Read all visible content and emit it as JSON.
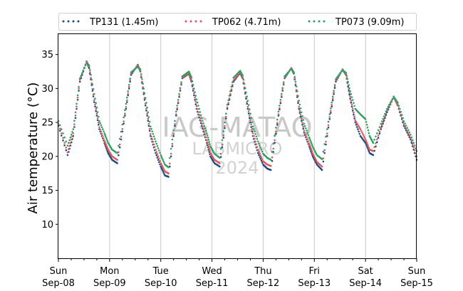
{
  "chart_data": {
    "type": "scatter",
    "ylabel": "Air temperature (°C)",
    "xlabel": "",
    "ylim": [
      5,
      38
    ],
    "xlim": [
      0,
      7
    ],
    "yticks": [
      10,
      15,
      20,
      25,
      30,
      35
    ],
    "x_unit": "days since Sep-08 00:00",
    "x_ticks": [
      {
        "day": "Sun",
        "date": "Sep-08"
      },
      {
        "day": "Mon",
        "date": "Sep-09"
      },
      {
        "day": "Tue",
        "date": "Sep-10"
      },
      {
        "day": "Wed",
        "date": "Sep-11"
      },
      {
        "day": "Thu",
        "date": "Sep-12"
      },
      {
        "day": "Fri",
        "date": "Sep-13"
      },
      {
        "day": "Sat",
        "date": "Sep-14"
      },
      {
        "day": "Sun",
        "date": "Sep-15"
      }
    ],
    "vertical_grid": true,
    "legend_position": "top",
    "watermark": [
      "IAG-MATAO",
      "LABMICRO",
      "2024"
    ],
    "series": [
      {
        "name": "TP131 (1.45m)",
        "color": "#1a4a8a",
        "x": [
          0,
          0.18,
          0.29,
          0.42,
          0.55,
          0.6,
          0.7,
          0.8,
          0.9,
          0.97,
          1.05,
          1.15,
          1.3,
          1.42,
          1.55,
          1.6,
          1.7,
          1.8,
          1.9,
          2.0,
          2.08,
          2.15,
          2.3,
          2.42,
          2.55,
          2.6,
          2.7,
          2.8,
          2.9,
          2.97,
          3.05,
          3.15,
          3.3,
          3.42,
          3.55,
          3.6,
          3.7,
          3.8,
          3.9,
          4.0,
          4.08,
          4.15,
          4.3,
          4.42,
          4.55,
          4.6,
          4.7,
          4.8,
          4.9,
          4.97,
          5.05,
          5.15,
          5.3,
          5.42,
          5.55,
          5.62,
          5.7,
          5.8,
          5.9,
          6.0,
          6.08,
          6.15,
          6.3,
          6.42,
          6.55,
          6.63,
          6.75,
          6.88,
          7.0
        ],
        "y": [
          24.5,
          20.2,
          23.0,
          31.0,
          34.0,
          33.0,
          28.0,
          24.0,
          22.0,
          20.5,
          19.5,
          19.0,
          26.0,
          32.0,
          33.5,
          32.5,
          27.5,
          23.0,
          20.5,
          18.5,
          17.2,
          17.0,
          26.0,
          31.5,
          32.2,
          31.0,
          27.0,
          24.5,
          22.0,
          20.0,
          19.0,
          18.5,
          27.0,
          31.0,
          32.3,
          31.5,
          27.0,
          23.0,
          20.5,
          18.8,
          18.2,
          18.0,
          26.0,
          31.5,
          33.0,
          32.2,
          27.0,
          23.5,
          21.5,
          20.0,
          18.8,
          18.0,
          25.5,
          31.0,
          32.8,
          32.0,
          28.5,
          25.0,
          23.0,
          22.0,
          20.5,
          20.2,
          24.0,
          26.5,
          28.8,
          27.5,
          24.5,
          22.5,
          19.5
        ]
      },
      {
        "name": "TP062 (4.71m)",
        "color": "#e15759",
        "x": [
          0,
          0.18,
          0.29,
          0.42,
          0.55,
          0.6,
          0.7,
          0.8,
          0.9,
          0.97,
          1.05,
          1.15,
          1.3,
          1.42,
          1.55,
          1.6,
          1.7,
          1.8,
          1.9,
          2.0,
          2.08,
          2.15,
          2.3,
          2.42,
          2.55,
          2.6,
          2.7,
          2.8,
          2.9,
          2.97,
          3.05,
          3.15,
          3.3,
          3.42,
          3.55,
          3.6,
          3.7,
          3.8,
          3.9,
          4.0,
          4.08,
          4.15,
          4.3,
          4.42,
          4.55,
          4.6,
          4.7,
          4.8,
          4.9,
          4.97,
          5.05,
          5.15,
          5.3,
          5.42,
          5.55,
          5.62,
          5.7,
          5.8,
          5.9,
          6.0,
          6.08,
          6.15,
          6.3,
          6.42,
          6.55,
          6.63,
          6.75,
          6.88,
          7.0
        ],
        "y": [
          24.8,
          20.6,
          23.4,
          31.3,
          34.0,
          33.2,
          28.3,
          24.3,
          22.3,
          21.0,
          20.0,
          19.5,
          26.3,
          32.2,
          33.4,
          32.6,
          27.8,
          23.3,
          21.0,
          19.0,
          17.8,
          17.5,
          26.2,
          31.6,
          32.3,
          31.2,
          27.4,
          24.8,
          22.4,
          20.5,
          19.5,
          19.0,
          27.2,
          31.2,
          32.4,
          31.6,
          27.3,
          23.4,
          21.0,
          19.3,
          18.8,
          18.6,
          26.2,
          31.6,
          33.0,
          32.3,
          27.3,
          23.8,
          21.9,
          20.4,
          19.2,
          18.5,
          25.8,
          31.2,
          32.8,
          32.1,
          28.8,
          25.3,
          24.0,
          22.5,
          21.0,
          20.8,
          24.2,
          26.7,
          28.8,
          27.6,
          24.7,
          22.7,
          20.0
        ]
      },
      {
        "name": "TP073 (9.09m)",
        "color": "#2ca25f",
        "x": [
          0,
          0.18,
          0.29,
          0.42,
          0.55,
          0.6,
          0.7,
          0.8,
          0.9,
          0.97,
          1.05,
          1.15,
          1.3,
          1.42,
          1.55,
          1.6,
          1.7,
          1.8,
          1.9,
          2.0,
          2.08,
          2.15,
          2.3,
          2.42,
          2.55,
          2.6,
          2.7,
          2.8,
          2.9,
          2.97,
          3.05,
          3.15,
          3.3,
          3.42,
          3.55,
          3.6,
          3.7,
          3.8,
          3.9,
          4.0,
          4.08,
          4.15,
          4.3,
          4.42,
          4.55,
          4.6,
          4.7,
          4.8,
          4.9,
          4.97,
          5.05,
          5.15,
          5.3,
          5.42,
          5.55,
          5.62,
          5.7,
          5.8,
          5.9,
          6.0,
          6.08,
          6.15,
          6.3,
          6.42,
          6.55,
          6.63,
          6.75,
          6.88,
          7.0
        ],
        "y": [
          25.2,
          21.6,
          24.0,
          31.5,
          33.8,
          33.4,
          29.2,
          25.2,
          23.4,
          22.0,
          21.0,
          20.5,
          26.8,
          32.4,
          33.2,
          32.8,
          28.6,
          24.4,
          22.2,
          20.2,
          18.8,
          18.4,
          26.6,
          31.8,
          32.5,
          31.6,
          28.4,
          25.6,
          23.4,
          21.5,
          20.4,
          19.8,
          27.6,
          31.6,
          32.6,
          31.9,
          28.2,
          24.4,
          22.2,
          20.4,
          19.8,
          19.5,
          26.6,
          31.8,
          32.9,
          32.4,
          28.2,
          24.8,
          22.8,
          21.4,
          20.2,
          19.6,
          26.2,
          31.4,
          32.7,
          32.3,
          29.6,
          27.0,
          26.2,
          25.5,
          23.0,
          22.0,
          24.8,
          27.0,
          28.8,
          27.9,
          25.2,
          23.2,
          20.8
        ]
      }
    ]
  }
}
